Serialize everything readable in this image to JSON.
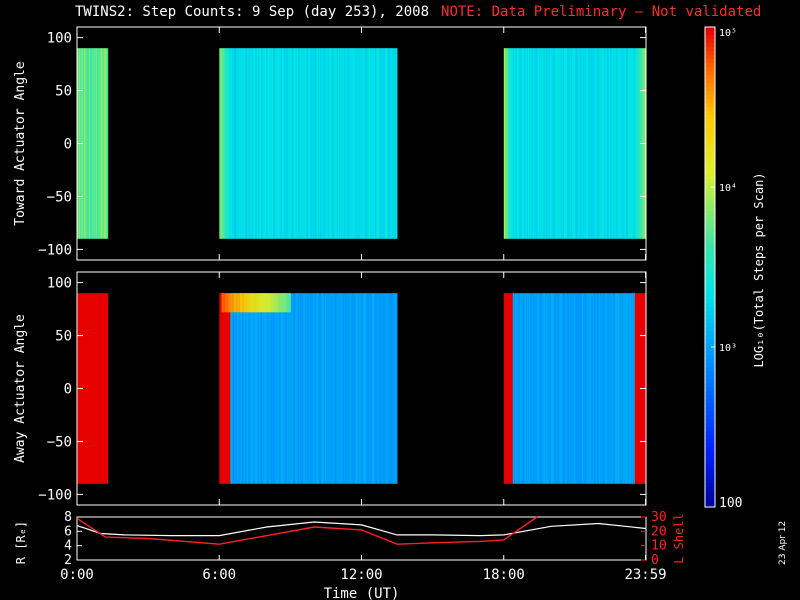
{
  "title": "TWINS2: Step Counts:  9 Sep (day 253), 2008",
  "note": "NOTE: Data Preliminary – Not validated",
  "date_stamp": "23 Apr 12",
  "colors": {
    "note": "#ff2a2a",
    "background": "#000000",
    "lshell_line": "#ff2020",
    "r_line": "#ffffff"
  },
  "chart_data": [
    {
      "type": "heatmap",
      "ylabel": "Toward Actuator Angle",
      "ylim": [
        -110,
        110
      ],
      "yticks": [
        100,
        50,
        0,
        -50,
        -100
      ],
      "xlim": [
        0,
        24
      ],
      "angle_range": [
        -90,
        90
      ],
      "data_intervals_hours": [
        [
          0,
          1.3
        ],
        [
          6,
          13.5
        ],
        [
          18,
          24
        ]
      ],
      "dominant_log10_value": 3.3,
      "edge_log10_value": 3.9
    },
    {
      "type": "heatmap",
      "ylabel": "Away Actuator Angle",
      "ylim": [
        -110,
        110
      ],
      "yticks": [
        100,
        50,
        0,
        -50,
        -100
      ],
      "xlim": [
        0,
        24
      ],
      "angle_range": [
        -90,
        90
      ],
      "data_intervals_hours": [
        [
          0,
          1.3
        ],
        [
          6,
          13.5
        ],
        [
          18,
          24
        ]
      ],
      "dominant_log10_value": 3.0,
      "hotspot": {
        "time_hours": [
          6.1,
          9.0
        ],
        "angle": [
          72,
          90
        ],
        "log10_value": 4.8
      }
    },
    {
      "type": "line",
      "xlabel": "Time (UT)",
      "xticks": [
        "0:00",
        "6:00",
        "12:00",
        "18:00",
        "23:59"
      ],
      "xtick_hours": [
        0,
        6,
        12,
        18,
        23.98
      ],
      "series": [
        {
          "name": "R [Rₑ]",
          "axis": "left",
          "ylim": [
            2,
            8
          ],
          "yticks": [
            2,
            4,
            6,
            8
          ],
          "x": [
            0,
            1,
            2,
            4,
            6,
            8,
            10,
            12,
            13.5,
            15,
            17,
            18,
            20,
            22,
            24
          ],
          "y": [
            6.8,
            5.7,
            5.5,
            5.4,
            5.4,
            6.6,
            7.3,
            6.9,
            5.5,
            5.5,
            5.4,
            5.5,
            6.7,
            7.1,
            6.4
          ]
        },
        {
          "name": "L Shell",
          "axis": "right",
          "ylim": [
            0,
            30
          ],
          "yticks": [
            0,
            10,
            20,
            30
          ],
          "x": [
            0,
            1.2,
            3,
            6,
            10,
            12,
            13.5,
            15,
            17,
            18,
            19.4
          ],
          "y": [
            29,
            16,
            15,
            11,
            23,
            21,
            11,
            12,
            13,
            14,
            30
          ]
        }
      ]
    },
    {
      "type": "colorbar",
      "label": "LOG₁₀(Total Steps per Scan)",
      "ticks": [
        "10⁵",
        "10⁴",
        "10³",
        "100"
      ],
      "range_log10": [
        2,
        5
      ]
    }
  ]
}
